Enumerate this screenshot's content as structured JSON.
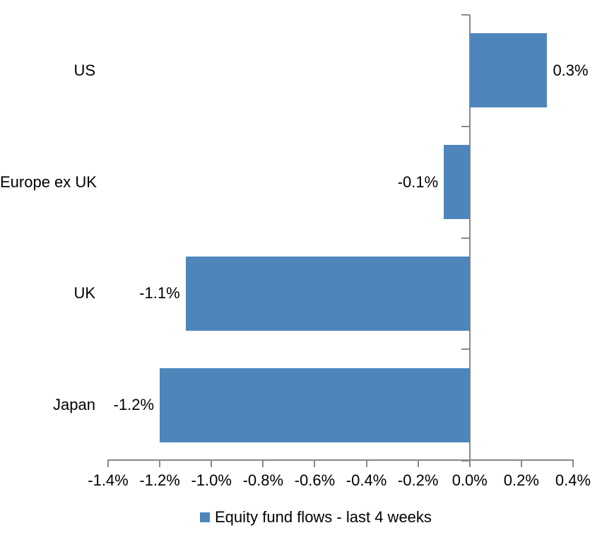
{
  "chart_data": {
    "type": "bar",
    "orientation": "horizontal",
    "title": "",
    "categories": [
      "US",
      "Europe ex UK",
      "UK",
      "Japan"
    ],
    "series": [
      {
        "name": "Equity fund flows - last 4 weeks",
        "values": [
          0.3,
          -0.1,
          -1.1,
          -1.2
        ],
        "data_labels": [
          "0.3%",
          "-0.1%",
          "-1.1%",
          "-1.2%"
        ]
      }
    ],
    "xlabel": "",
    "ylabel": "",
    "xlim": [
      -1.4,
      0.4
    ],
    "x_tick_values": [
      -1.4,
      -1.2,
      -1.0,
      -0.8,
      -0.6,
      -0.4,
      -0.2,
      0.0,
      0.2,
      0.4
    ],
    "x_tick_labels": [
      "-1.4%",
      "-1.2%",
      "-1.0%",
      "-0.8%",
      "-0.6%",
      "-0.4%",
      "-0.2%",
      "0.0%",
      "0.2%",
      "0.4%"
    ],
    "grid": false,
    "legend_position": "bottom",
    "data_label_position": "outside-end",
    "colors": {
      "bar": "#4E86BC",
      "axis": "#898989",
      "text": "#000000",
      "background": "#FFFFFF"
    }
  },
  "legend": {
    "label": "Equity fund flows - last 4 weeks"
  }
}
